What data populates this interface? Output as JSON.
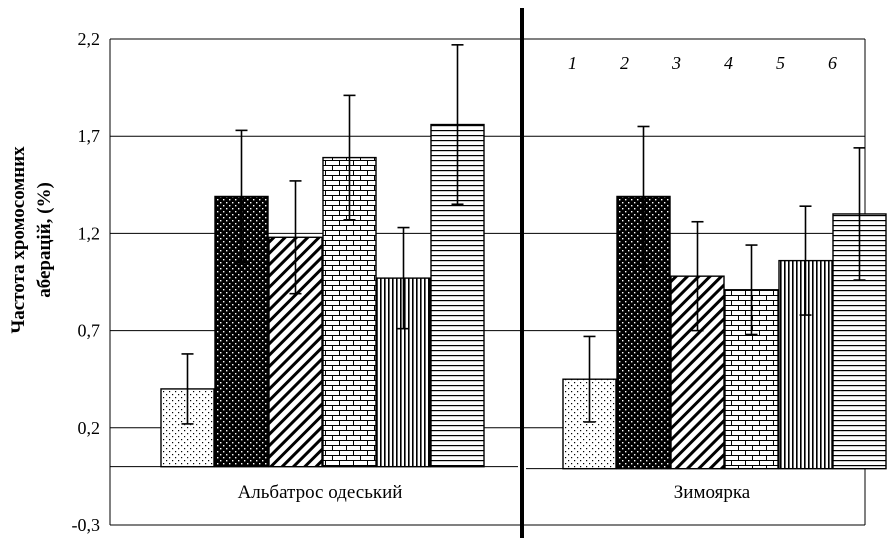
{
  "chart_data": {
    "type": "bar",
    "ylabel_line1": "Частота хромосомних",
    "ylabel_line2": "аберацій, (%)",
    "ylim": [
      -0.3,
      2.2
    ],
    "yticks": [
      "2,2",
      "1,7",
      "1,2",
      "0,7",
      "0,2",
      "-0,3"
    ],
    "ytick_values": [
      2.2,
      1.7,
      1.2,
      0.7,
      0.2,
      -0.3
    ],
    "grid": true,
    "groups": [
      "Альбатрос одеський",
      "Зимоярка"
    ],
    "series": [
      {
        "name": "1",
        "values": [
          0.4,
          0.45
        ],
        "error": [
          0.18,
          0.22
        ],
        "pattern": "dots-sparse"
      },
      {
        "name": "2",
        "values": [
          1.39,
          1.39
        ],
        "error": [
          0.34,
          0.36
        ],
        "pattern": "dots-dense"
      },
      {
        "name": "3",
        "values": [
          1.18,
          0.98
        ],
        "error": [
          0.29,
          0.28
        ],
        "pattern": "diagonal"
      },
      {
        "name": "4",
        "values": [
          1.59,
          0.91
        ],
        "error": [
          0.32,
          0.23
        ],
        "pattern": "brick"
      },
      {
        "name": "5",
        "values": [
          0.97,
          1.06
        ],
        "error": [
          0.26,
          0.28
        ],
        "pattern": "vertical"
      },
      {
        "name": "6",
        "values": [
          1.76,
          1.3
        ],
        "error": [
          0.41,
          0.34
        ],
        "pattern": "horizontal"
      }
    ]
  }
}
